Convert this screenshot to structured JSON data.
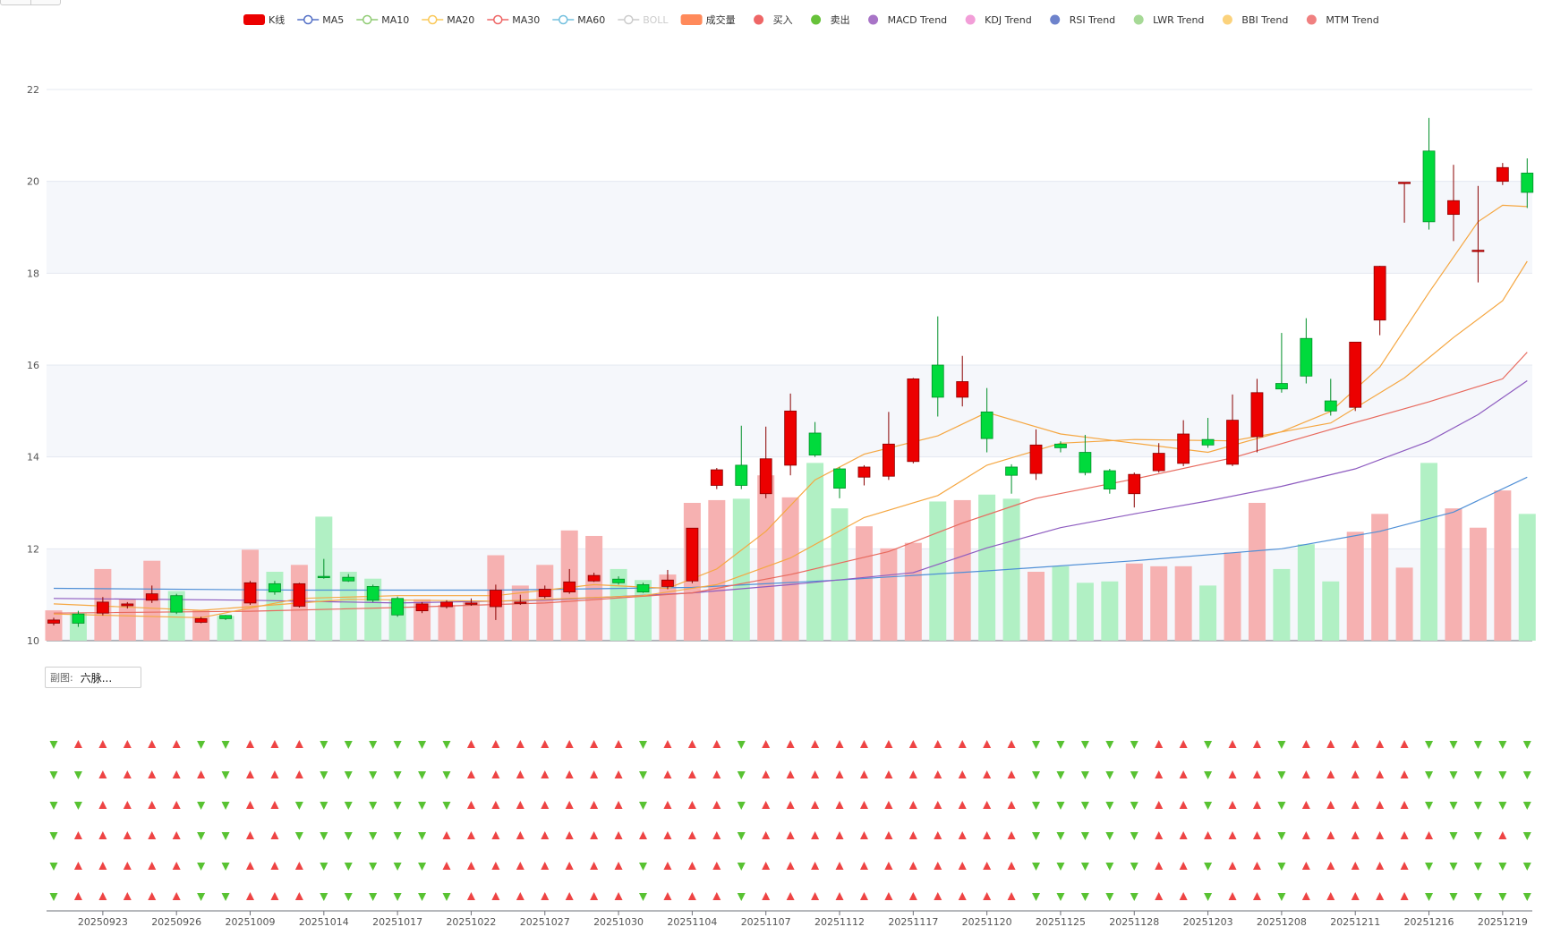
{
  "legend": [
    {
      "label": "K线",
      "color": "#ec0000",
      "shape": "rect",
      "on": true
    },
    {
      "label": "MA5",
      "color": "#5470c6",
      "shape": "line",
      "on": true
    },
    {
      "label": "MA10",
      "color": "#91cc75",
      "shape": "line",
      "on": true
    },
    {
      "label": "MA20",
      "color": "#fac858",
      "shape": "line",
      "on": true
    },
    {
      "label": "MA30",
      "color": "#ee6666",
      "shape": "line",
      "on": true
    },
    {
      "label": "MA60",
      "color": "#73c0de",
      "shape": "line",
      "on": true
    },
    {
      "label": "BOLL",
      "color": "#cccccc",
      "shape": "line",
      "on": false
    },
    {
      "label": "成交量",
      "color": "#ff8a5b",
      "shape": "rect",
      "on": true
    },
    {
      "label": "买入",
      "color": "#ee6666",
      "shape": "dot",
      "on": true
    },
    {
      "label": "卖出",
      "color": "#67c23a",
      "shape": "dot",
      "on": true
    },
    {
      "label": "MACD Trend",
      "color": "#a874c7",
      "shape": "dot",
      "on": true
    },
    {
      "label": "KDJ Trend",
      "color": "#f29ed8",
      "shape": "dot",
      "on": true
    },
    {
      "label": "RSI Trend",
      "color": "#6e83cc",
      "shape": "dot",
      "on": true
    },
    {
      "label": "LWR Trend",
      "color": "#a6d996",
      "shape": "dot",
      "on": true
    },
    {
      "label": "BBI Trend",
      "color": "#fbd27c",
      "shape": "dot",
      "on": true
    },
    {
      "label": "MTM Trend",
      "color": "#f08080",
      "shape": "dot",
      "on": true
    }
  ],
  "subchart": {
    "label": "副图:",
    "value": "六脉..."
  },
  "colors": {
    "up": "#ec0000",
    "down": "#00da3c",
    "vol_up": "#f6b1b1",
    "vol_down": "#b1f0c4",
    "buy": "#ee4444",
    "sell": "#58c232",
    "ma_fast": "#f5a742",
    "ma_mid": "#e86a5e",
    "ma_slow": "#8e5cc0",
    "ma_long": "#4f8fd6"
  },
  "chart_data": {
    "type": "candlestick",
    "ylim": [
      10,
      22
    ],
    "yticks": [
      10,
      12,
      14,
      16,
      18,
      20,
      22
    ],
    "xtick_labels": [
      "20250923",
      "20250926",
      "20251009",
      "20251014",
      "20251017",
      "20251022",
      "20251027",
      "20251030",
      "20251104",
      "20251107",
      "20251112",
      "20251117",
      "20251120",
      "20251125",
      "20251128",
      "20251203",
      "20251208",
      "20251211",
      "20251216",
      "20251219"
    ],
    "xtick_every": 3,
    "candles": [
      [
        10.38,
        10.45,
        10.33,
        10.5
      ],
      [
        10.58,
        10.38,
        10.3,
        10.65
      ],
      [
        10.6,
        10.84,
        10.55,
        10.95
      ],
      [
        10.76,
        10.8,
        10.7,
        10.84
      ],
      [
        10.88,
        11.02,
        10.82,
        11.2
      ],
      [
        10.98,
        10.62,
        10.58,
        11.02
      ],
      [
        10.4,
        10.48,
        10.38,
        10.52
      ],
      [
        10.55,
        10.48,
        10.45,
        10.56
      ],
      [
        10.82,
        11.26,
        10.78,
        11.3
      ],
      [
        11.24,
        11.06,
        11.0,
        11.3
      ],
      [
        10.75,
        11.24,
        10.72,
        11.26
      ],
      [
        11.4,
        11.38,
        11.35,
        11.78
      ],
      [
        11.38,
        11.3,
        11.28,
        11.45
      ],
      [
        11.18,
        10.88,
        10.84,
        11.22
      ],
      [
        10.92,
        10.56,
        10.52,
        10.96
      ],
      [
        10.65,
        10.8,
        10.6,
        10.84
      ],
      [
        10.74,
        10.84,
        10.7,
        10.88
      ],
      [
        10.8,
        10.82,
        10.76,
        10.92
      ],
      [
        10.74,
        11.1,
        10.45,
        11.22
      ],
      [
        10.82,
        10.84,
        10.78,
        11.0
      ],
      [
        10.96,
        11.12,
        10.92,
        11.2
      ],
      [
        11.06,
        11.28,
        11.02,
        11.56
      ],
      [
        11.3,
        11.42,
        11.28,
        11.48
      ],
      [
        11.34,
        11.26,
        11.22,
        11.4
      ],
      [
        11.22,
        11.06,
        11.04,
        11.26
      ],
      [
        11.18,
        11.32,
        11.12,
        11.54
      ],
      [
        11.3,
        12.45,
        11.25,
        12.45
      ],
      [
        13.38,
        13.72,
        13.3,
        13.76
      ],
      [
        13.82,
        13.38,
        13.3,
        14.68
      ],
      [
        13.2,
        13.96,
        13.1,
        14.66
      ],
      [
        13.82,
        15.0,
        13.6,
        15.38
      ],
      [
        14.52,
        14.04,
        14.0,
        14.76
      ],
      [
        13.74,
        13.32,
        13.1,
        13.78
      ],
      [
        13.56,
        13.78,
        13.38,
        13.82
      ],
      [
        13.58,
        14.28,
        13.5,
        14.98
      ],
      [
        13.9,
        15.7,
        13.86,
        15.72
      ],
      [
        16.0,
        15.3,
        14.88,
        17.06
      ],
      [
        15.3,
        15.64,
        15.1,
        16.2
      ],
      [
        14.98,
        14.4,
        14.1,
        15.5
      ],
      [
        13.78,
        13.6,
        13.2,
        13.84
      ],
      [
        13.64,
        14.26,
        13.5,
        14.6
      ],
      [
        14.28,
        14.2,
        14.1,
        14.34
      ],
      [
        14.1,
        13.66,
        13.6,
        14.48
      ],
      [
        13.7,
        13.3,
        13.2,
        13.74
      ],
      [
        13.2,
        13.62,
        12.9,
        13.66
      ],
      [
        13.7,
        14.08,
        13.66,
        14.3
      ],
      [
        13.86,
        14.5,
        13.8,
        14.8
      ],
      [
        14.38,
        14.26,
        14.2,
        14.85
      ],
      [
        13.84,
        14.8,
        13.8,
        15.36
      ],
      [
        14.44,
        15.4,
        14.1,
        15.7
      ],
      [
        15.6,
        15.48,
        15.4,
        16.7
      ],
      [
        16.58,
        15.76,
        15.6,
        17.02
      ],
      [
        15.22,
        15.0,
        14.9,
        15.7
      ],
      [
        15.08,
        16.5,
        15.0,
        16.5
      ],
      [
        16.98,
        18.15,
        16.65,
        18.16
      ],
      [
        19.96,
        19.98,
        19.1,
        19.98
      ],
      [
        20.66,
        19.12,
        18.95,
        21.38
      ],
      [
        19.28,
        19.58,
        18.7,
        20.36
      ],
      [
        18.5,
        18.5,
        17.8,
        19.9
      ],
      [
        20.0,
        20.3,
        19.92,
        20.4
      ],
      [
        20.18,
        19.76,
        19.42,
        20.5
      ]
    ],
    "volume": [
      0.22,
      0.2,
      0.52,
      0.3,
      0.58,
      0.36,
      0.22,
      0.18,
      0.66,
      0.5,
      0.55,
      0.9,
      0.5,
      0.45,
      0.3,
      0.3,
      0.26,
      0.28,
      0.62,
      0.4,
      0.55,
      0.8,
      0.76,
      0.52,
      0.44,
      0.48,
      1.0,
      1.02,
      1.03,
      1.2,
      1.04,
      1.29,
      0.96,
      0.83,
      0.67,
      0.71,
      1.01,
      1.02,
      1.06,
      1.03,
      0.5,
      0.54,
      0.42,
      0.43,
      0.56,
      0.54,
      0.54,
      0.4,
      0.64,
      1.0,
      0.52,
      0.7,
      0.43,
      0.79,
      0.92,
      0.53,
      1.29,
      0.96,
      0.82,
      1.09,
      0.92
    ],
    "ma_fast": [
      [
        0,
        10.58
      ],
      [
        6,
        10.5
      ],
      [
        10,
        10.92
      ],
      [
        14,
        10.98
      ],
      [
        18,
        10.98
      ],
      [
        22,
        11.22
      ],
      [
        25,
        11.14
      ],
      [
        27,
        11.56
      ],
      [
        29,
        12.38
      ],
      [
        31,
        13.5
      ],
      [
        33,
        14.06
      ],
      [
        36,
        14.46
      ],
      [
        38,
        14.97
      ],
      [
        41,
        14.5
      ],
      [
        44,
        14.3
      ],
      [
        47,
        14.1
      ],
      [
        50,
        14.55
      ],
      [
        52,
        14.99
      ],
      [
        54,
        15.96
      ],
      [
        56,
        17.58
      ],
      [
        58,
        19.12
      ],
      [
        59,
        19.48
      ],
      [
        60,
        19.45
      ]
    ],
    "ma_mid": [
      [
        0,
        10.8
      ],
      [
        6,
        10.66
      ],
      [
        12,
        10.9
      ],
      [
        18,
        10.86
      ],
      [
        24,
        10.98
      ],
      [
        27,
        11.22
      ],
      [
        30,
        11.8
      ],
      [
        33,
        12.68
      ],
      [
        36,
        13.16
      ],
      [
        38,
        13.82
      ],
      [
        41,
        14.3
      ],
      [
        44,
        14.38
      ],
      [
        48,
        14.35
      ],
      [
        52,
        14.74
      ],
      [
        55,
        15.72
      ],
      [
        57,
        16.6
      ],
      [
        59,
        17.4
      ],
      [
        60,
        18.26
      ]
    ],
    "ma_slow": [
      [
        0,
        10.92
      ],
      [
        8,
        10.88
      ],
      [
        14,
        10.82
      ],
      [
        20,
        10.88
      ],
      [
        26,
        11.04
      ],
      [
        30,
        11.22
      ],
      [
        35,
        11.48
      ],
      [
        38,
        12.02
      ],
      [
        41,
        12.46
      ],
      [
        44,
        12.76
      ],
      [
        47,
        13.04
      ],
      [
        50,
        13.36
      ],
      [
        53,
        13.74
      ],
      [
        56,
        14.34
      ],
      [
        58,
        14.92
      ],
      [
        60,
        15.66
      ]
    ],
    "ma_red": [
      [
        0,
        10.6
      ],
      [
        8,
        10.64
      ],
      [
        14,
        10.72
      ],
      [
        20,
        10.82
      ],
      [
        26,
        11.04
      ],
      [
        30,
        11.44
      ],
      [
        34,
        11.94
      ],
      [
        37,
        12.56
      ],
      [
        40,
        13.1
      ],
      [
        44,
        13.52
      ],
      [
        48,
        13.98
      ],
      [
        52,
        14.6
      ],
      [
        56,
        15.2
      ],
      [
        59,
        15.7
      ],
      [
        60,
        16.28
      ]
    ],
    "ma_long": [
      [
        0,
        11.14
      ],
      [
        10,
        11.1
      ],
      [
        18,
        11.1
      ],
      [
        26,
        11.16
      ],
      [
        32,
        11.32
      ],
      [
        38,
        11.52
      ],
      [
        44,
        11.74
      ],
      [
        50,
        12.0
      ],
      [
        54,
        12.38
      ],
      [
        57,
        12.8
      ],
      [
        60,
        13.56
      ]
    ],
    "signals": [
      "SBBBBBSSBBBSSSSSSBBBBBBBSBBBSBBBBBBBBBBBSSSSSBBSBBSBBBBBSSSSS",
      "SSBBBBBSBBBSSSSSSBBBBBBBSBBBSBBBBBBBBBBBSSSSSBBSBBSBBBBBSSSSS",
      "SSBBBBSSBBSSSSSSSBBBBBBBSBBBSBBBBBBBBBBBSSSSSBBSBBSBBBBBSSSSS",
      "SBBBBBSSBBSSSSSSBBBBBBBBBBBBSBBBBBBBBBBBSSSSSBBBBBSBBBBBBSSBS",
      "SBBBBBSSBBBSSSSSBBBBBBBBSBBBSBBBBBBBBBBBSSSSSBBSBBSBBBBBSSSSS",
      "SBBBBBSSBBBSSSSSSBBBBBBBSBBBSBBBBBBBBBBBSSSSSBBSBBSBBBBBSSSSS"
    ]
  }
}
